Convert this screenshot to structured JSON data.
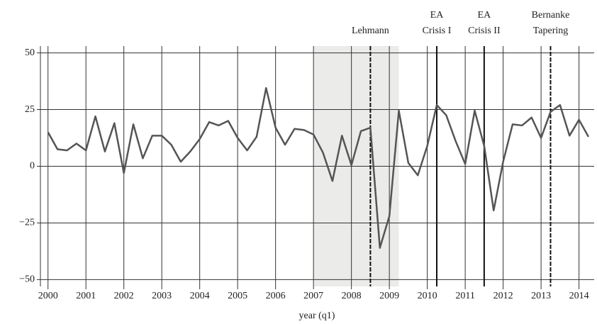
{
  "chart_data": {
    "type": "line",
    "xlabel": "year (q1)",
    "xlim": [
      1999.8,
      2014.4
    ],
    "xticks": [
      2000,
      2001,
      2002,
      2003,
      2004,
      2005,
      2006,
      2007,
      2008,
      2009,
      2010,
      2011,
      2012,
      2013,
      2014
    ],
    "ylim": [
      -53,
      53
    ],
    "yticks": [
      {
        "value": -50,
        "label": "−50"
      },
      {
        "value": -25,
        "label": "−25"
      },
      0,
      25,
      50
    ],
    "grid": true,
    "shaded_region": {
      "xstart": 2007,
      "xend": 2009.25,
      "color": "#ebebea"
    },
    "events": [
      {
        "x": 2008.5,
        "lines": [
          "Lehmann"
        ],
        "style": "dashed"
      },
      {
        "x": 2010.25,
        "lines": [
          "EA",
          "Crisis I"
        ],
        "style": "solid"
      },
      {
        "x": 2011.5,
        "lines": [
          "EA",
          "Crisis II"
        ],
        "style": "solid"
      },
      {
        "x": 2013.25,
        "lines": [
          "Bernanke",
          "Tapering"
        ],
        "style": "dashed"
      }
    ],
    "x": [
      2000,
      2000.25,
      2000.5,
      2000.75,
      2001,
      2001.25,
      2001.5,
      2001.75,
      2002,
      2002.25,
      2002.5,
      2002.75,
      2003,
      2003.25,
      2003.5,
      2003.75,
      2004,
      2004.25,
      2004.5,
      2004.75,
      2005,
      2005.25,
      2005.5,
      2005.75,
      2006,
      2006.25,
      2006.5,
      2006.75,
      2007,
      2007.25,
      2007.5,
      2007.75,
      2008,
      2008.25,
      2008.5,
      2008.75,
      2009,
      2009.25,
      2009.5,
      2009.75,
      2010,
      2010.25,
      2010.5,
      2010.75,
      2011,
      2011.25,
      2011.5,
      2011.75,
      2012,
      2012.25,
      2012.5,
      2012.75,
      2013,
      2013.25,
      2013.5,
      2013.75,
      2014,
      2014.25
    ],
    "series": [
      {
        "color": "#555555",
        "values": [
          15,
          7.5,
          7,
          10,
          7,
          22,
          6.5,
          19,
          -3,
          18.5,
          3.5,
          13.5,
          13.5,
          9.5,
          2,
          6.5,
          12,
          19.5,
          18,
          20,
          12.5,
          7,
          13,
          34.5,
          17,
          9.5,
          16.5,
          16,
          14,
          6,
          -6.5,
          13.5,
          0.5,
          15.5,
          17,
          -36,
          -22,
          24.5,
          1.5,
          -4,
          9,
          27,
          22.5,
          11,
          1,
          24.5,
          9,
          -19.5,
          2,
          18.5,
          18,
          21.5,
          12.5,
          24,
          27,
          13.5,
          20.5,
          13
        ]
      }
    ]
  }
}
